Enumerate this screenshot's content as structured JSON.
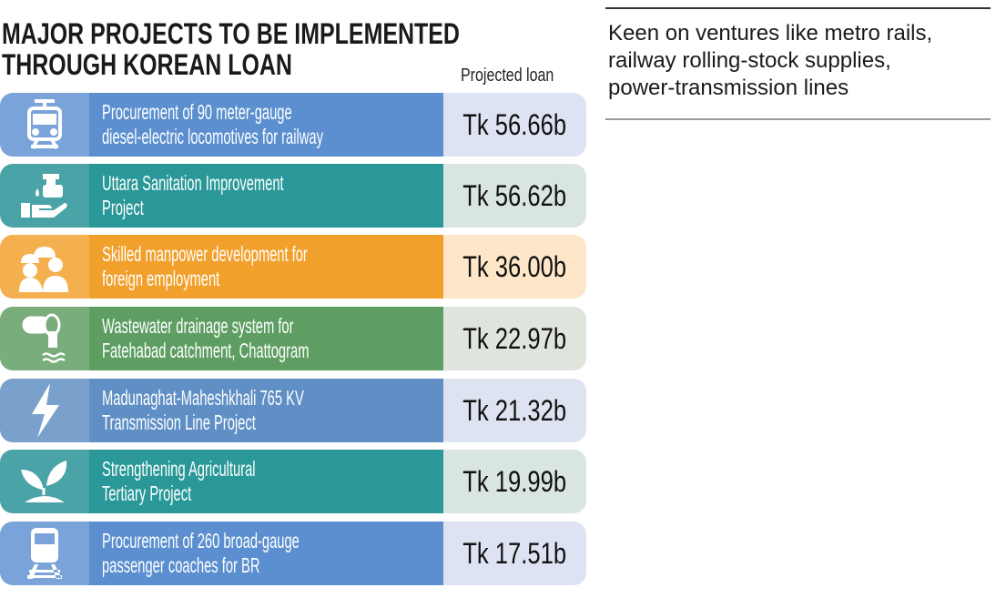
{
  "title_lines": [
    "MAJOR PROJECTS TO BE IMPLEMENTED",
    "THROUGH KOREAN LOAN"
  ],
  "projected_label": "Projected loan",
  "colors": {
    "blue": "#5b8fcf",
    "teal": "#2a9898",
    "orange": "#f1a02c",
    "green": "#5e9e63"
  },
  "projects": [
    {
      "icon": "train-icon",
      "lines": [
        "Procurement of 90 meter-gauge",
        "diesel-electric locomotives for railway"
      ],
      "loan": "Tk 56.66b"
    },
    {
      "icon": "sanitation-hand-icon",
      "lines": [
        "Uttara Sanitation Improvement",
        "Project"
      ],
      "loan": "Tk 56.62b"
    },
    {
      "icon": "workers-icon",
      "lines": [
        "Skilled manpower development for",
        "foreign employment"
      ],
      "loan": "Tk 36.00b"
    },
    {
      "icon": "drainage-pipe-icon",
      "lines": [
        "Wastewater drainage system for",
        "Fatehabad catchment, Chattogram"
      ],
      "loan": "Tk 22.97b"
    },
    {
      "icon": "lightning-icon",
      "lines": [
        "Madunaghat-Maheshkhali 765 KV",
        "Transmission Line Project"
      ],
      "loan": "Tk 21.32b"
    },
    {
      "icon": "plant-icon",
      "lines": [
        "Strengthening Agricultural",
        "Tertiary Project"
      ],
      "loan": "Tk 19.99b"
    },
    {
      "icon": "coach-train-icon",
      "lines": [
        "Procurement of 260 broad-gauge",
        "passenger coaches for BR"
      ],
      "loan": "Tk 17.51b"
    }
  ],
  "side_text": [
    "Keen on ventures like metro rails,",
    "railway rolling-stock supplies,",
    "power-transmission lines"
  ]
}
